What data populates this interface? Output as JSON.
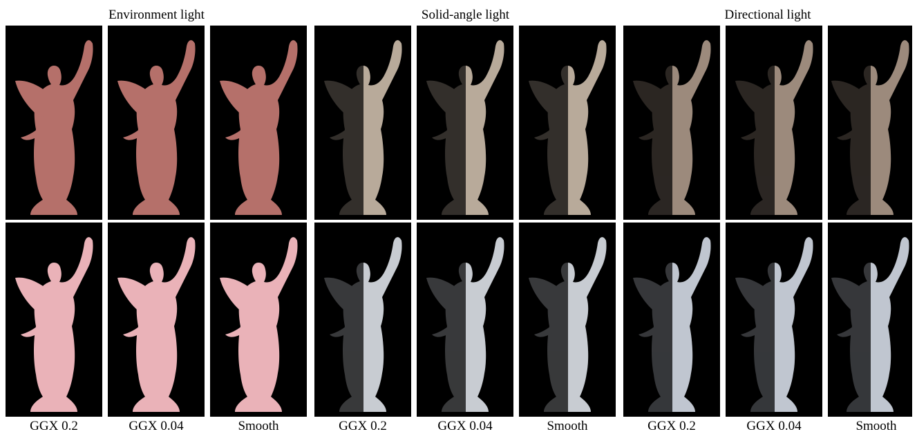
{
  "groups": [
    {
      "title": "Environment light"
    },
    {
      "title": "Solid-angle light"
    },
    {
      "title": "Directional light"
    }
  ],
  "column_labels": [
    "GGX 0.2",
    "GGX 0.04",
    "Smooth",
    "GGX 0.2",
    "GGX 0.04",
    "Smooth",
    "GGX 0.2",
    "GGX 0.04",
    "Smooth"
  ],
  "panel_colors": {
    "env_row1": "#b5706a",
    "env_row2": "#eab2b8",
    "solid_row1": "#b8aa9a",
    "solid_row2": "#c8ccd2",
    "dir_row1": "#9c8a7c",
    "dir_row2": "#c0c6d0",
    "background": "#000000"
  },
  "panels": [
    {
      "group": 0,
      "row": 1,
      "label": "GGX 0.2",
      "lit_fraction": 1.0
    },
    {
      "group": 0,
      "row": 1,
      "label": "GGX 0.04",
      "lit_fraction": 1.0
    },
    {
      "group": 0,
      "row": 1,
      "label": "Smooth",
      "lit_fraction": 1.0
    },
    {
      "group": 1,
      "row": 1,
      "label": "GGX 0.2",
      "lit_fraction": 0.5
    },
    {
      "group": 1,
      "row": 1,
      "label": "GGX 0.04",
      "lit_fraction": 0.5
    },
    {
      "group": 1,
      "row": 1,
      "label": "Smooth",
      "lit_fraction": 0.5
    },
    {
      "group": 2,
      "row": 1,
      "label": "GGX 0.2",
      "lit_fraction": 0.5
    },
    {
      "group": 2,
      "row": 1,
      "label": "GGX 0.04",
      "lit_fraction": 0.5
    },
    {
      "group": 2,
      "row": 1,
      "label": "Smooth",
      "lit_fraction": 0.5
    },
    {
      "group": 0,
      "row": 2,
      "label": "GGX 0.2",
      "lit_fraction": 1.0
    },
    {
      "group": 0,
      "row": 2,
      "label": "GGX 0.04",
      "lit_fraction": 1.0
    },
    {
      "group": 0,
      "row": 2,
      "label": "Smooth",
      "lit_fraction": 1.0
    },
    {
      "group": 1,
      "row": 2,
      "label": "GGX 0.2",
      "lit_fraction": 0.5
    },
    {
      "group": 1,
      "row": 2,
      "label": "GGX 0.04",
      "lit_fraction": 0.5
    },
    {
      "group": 1,
      "row": 2,
      "label": "Smooth",
      "lit_fraction": 0.5
    },
    {
      "group": 2,
      "row": 2,
      "label": "GGX 0.2",
      "lit_fraction": 0.5
    },
    {
      "group": 2,
      "row": 2,
      "label": "GGX 0.04",
      "lit_fraction": 0.5
    },
    {
      "group": 2,
      "row": 2,
      "label": "Smooth",
      "lit_fraction": 0.5
    }
  ]
}
